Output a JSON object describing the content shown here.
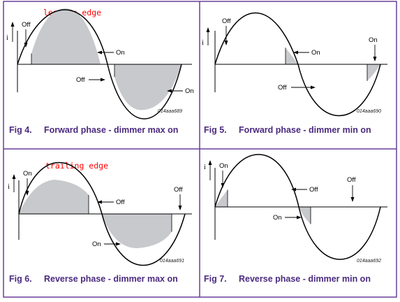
{
  "annotations": {
    "leading_edge": "leading edge",
    "trailing_edge": "trailing edge"
  },
  "figures": [
    {
      "fig_label": "Fig 4.",
      "title": "Forward phase - dimmer max on",
      "code": "014aaa689",
      "axis_label": "i",
      "labels": [
        "Off",
        "On",
        "Off",
        "On"
      ]
    },
    {
      "fig_label": "Fig 5.",
      "title": "Forward phase - dimmer min on",
      "code": "014aaa690",
      "axis_label": "i",
      "labels": [
        "Off",
        "On",
        "On",
        "Off"
      ]
    },
    {
      "fig_label": "Fig 6.",
      "title": "Reverse phase - dimmer max on",
      "code": "014aaa691",
      "axis_label": "i",
      "labels": [
        "On",
        "Off",
        "Off",
        "On"
      ]
    },
    {
      "fig_label": "Fig 7.",
      "title": "Reverse phase - dimmer min on",
      "code": "014aaa692",
      "axis_label": "i",
      "labels": [
        "On",
        "Off",
        "Off",
        "On"
      ]
    }
  ],
  "colors": {
    "border": "#6a3e9a",
    "caption": "#4b2a7f",
    "shade": "#c7c9cd",
    "annotation": "#ff0000"
  }
}
